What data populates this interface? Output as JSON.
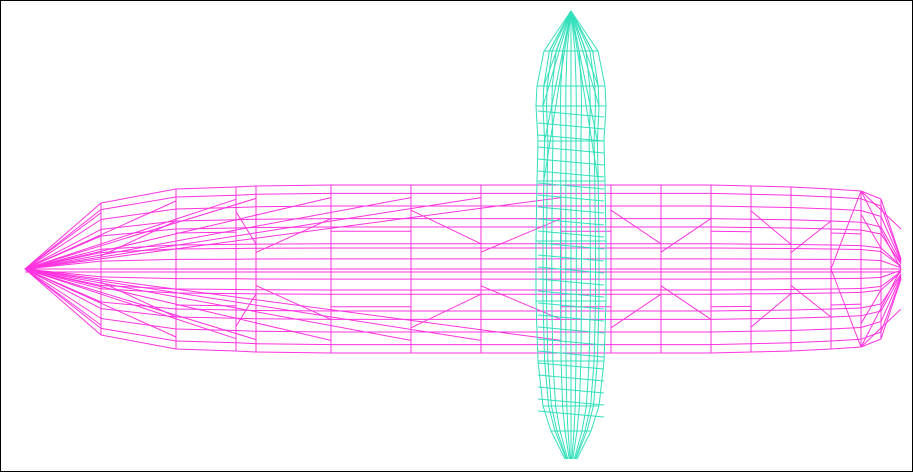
{
  "viewport": {
    "background": "#ffffff",
    "border_color": "#000000"
  },
  "meshes": [
    {
      "name": "horizontal-hull",
      "color": "#ff33e0"
    },
    {
      "name": "vertical-hull",
      "color": "#33e0bb"
    }
  ]
}
